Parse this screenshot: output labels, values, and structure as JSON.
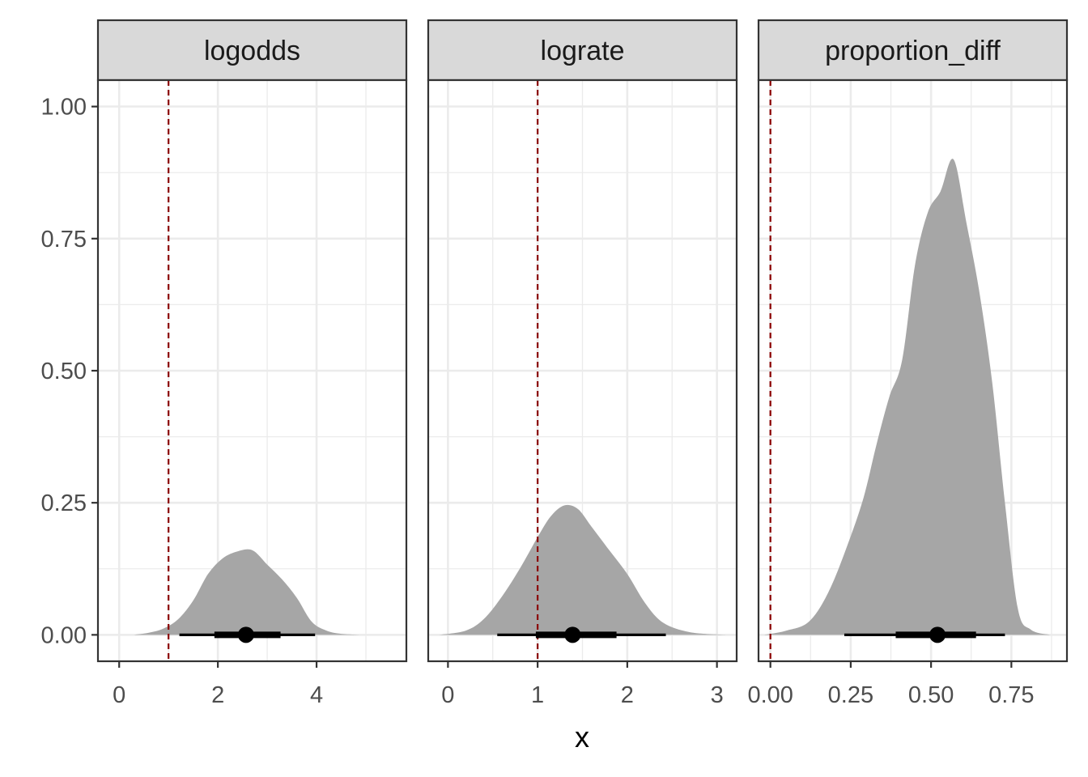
{
  "chart_data": {
    "type": "area",
    "xlabel": "x",
    "ylabel": "",
    "ylim": [
      -0.05,
      1.05
    ],
    "yticks": [
      0,
      0.25,
      0.5,
      0.75,
      1.0
    ],
    "ytick_labels": [
      "0.00",
      "0.25",
      "0.50",
      "0.75",
      "1.00"
    ],
    "grid": true,
    "colors": {
      "density_fill": "#a6a6a6",
      "reference_line": "#8b0000",
      "interval": "#000000",
      "strip_background": "#d9d9d9",
      "gridline": "#ebebeb",
      "panel_border": "#333333"
    },
    "panels": [
      {
        "label": "logodds",
        "xlim": [
          -0.43,
          5.82
        ],
        "xticks": [
          0,
          2,
          4
        ],
        "xtick_labels": [
          "0",
          "2",
          "4"
        ],
        "reference_x": 1,
        "density": {
          "x": [
            0.3,
            0.6,
            0.9,
            1.2,
            1.5,
            1.8,
            2.1,
            2.4,
            2.7,
            3.0,
            3.3,
            3.6,
            3.9,
            4.2,
            4.5,
            4.9
          ],
          "y": [
            0.0,
            0.004,
            0.012,
            0.03,
            0.065,
            0.115,
            0.145,
            0.158,
            0.16,
            0.133,
            0.105,
            0.07,
            0.025,
            0.008,
            0.002,
            0.0
          ]
        },
        "point": 2.57,
        "interval_inner": [
          1.93,
          3.27
        ],
        "interval_outer": [
          1.22,
          3.97
        ]
      },
      {
        "label": "lograte",
        "xlim": [
          -0.22,
          3.22
        ],
        "xticks": [
          0,
          1,
          2,
          3
        ],
        "xtick_labels": [
          "0",
          "1",
          "2",
          "3"
        ],
        "reference_x": 1,
        "density": {
          "x": [
            -0.1,
            0.2,
            0.4,
            0.6,
            0.8,
            1.0,
            1.15,
            1.3,
            1.45,
            1.6,
            1.8,
            2.0,
            2.2,
            2.4,
            2.7,
            3.1
          ],
          "y": [
            0.0,
            0.008,
            0.03,
            0.072,
            0.125,
            0.185,
            0.225,
            0.245,
            0.238,
            0.205,
            0.16,
            0.115,
            0.06,
            0.023,
            0.005,
            0.0
          ]
        },
        "point": 1.39,
        "interval_inner": [
          0.98,
          1.88
        ],
        "interval_outer": [
          0.55,
          2.43
        ]
      },
      {
        "label": "proportion_diff",
        "xlim": [
          -0.037,
          0.923
        ],
        "xticks": [
          0,
          0.25,
          0.5,
          0.75
        ],
        "xtick_labels": [
          "0.00",
          "0.25",
          "0.50",
          "0.75"
        ],
        "reference_x": 0,
        "density": {
          "x": [
            -0.02,
            0.05,
            0.12,
            0.18,
            0.24,
            0.29,
            0.33,
            0.37,
            0.41,
            0.45,
            0.49,
            0.53,
            0.57,
            0.61,
            0.65,
            0.69,
            0.73,
            0.77,
            0.81,
            0.87
          ],
          "y": [
            0.0,
            0.008,
            0.025,
            0.08,
            0.17,
            0.26,
            0.36,
            0.45,
            0.52,
            0.7,
            0.8,
            0.84,
            0.9,
            0.78,
            0.65,
            0.48,
            0.25,
            0.05,
            0.01,
            0.0
          ]
        },
        "point": 0.52,
        "interval_inner": [
          0.39,
          0.64
        ],
        "interval_outer": [
          0.23,
          0.73
        ]
      }
    ]
  }
}
